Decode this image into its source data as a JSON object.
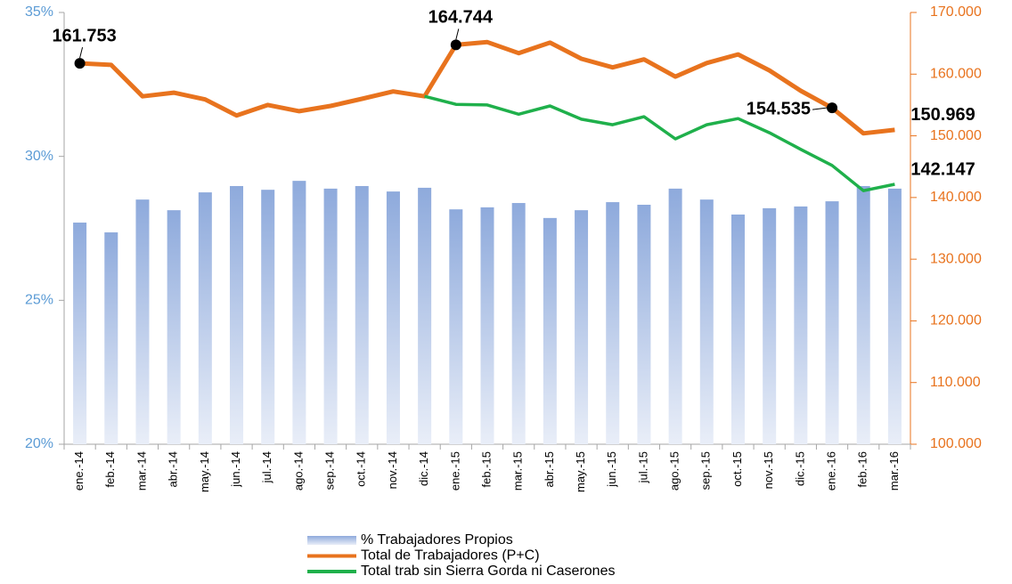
{
  "chart_data": {
    "type": "bar-line",
    "categories": [
      "ene.-14",
      "feb.-14",
      "mar.-14",
      "abr.-14",
      "may.-14",
      "jun.-14",
      "jul.-14",
      "ago.-14",
      "sep.-14",
      "oct.-14",
      "nov.-14",
      "dic.-14",
      "ene.-15",
      "feb.-15",
      "mar.-15",
      "abr.-15",
      "may.-15",
      "jun.-15",
      "jul.-15",
      "ago.-15",
      "sep.-15",
      "oct.-15",
      "nov.-15",
      "dic.-15",
      "ene.-16",
      "feb.-16",
      "mar.-16"
    ],
    "ylim": [
      20,
      35
    ],
    "yticks": [
      {
        "value": 20,
        "label": "20%"
      },
      {
        "value": 25,
        "label": "25%"
      },
      {
        "value": 30,
        "label": "30%"
      },
      {
        "value": 35,
        "label": "35%"
      }
    ],
    "y2lim": [
      100000,
      170000
    ],
    "y2ticks": [
      {
        "value": 100000,
        "label": "100.000"
      },
      {
        "value": 110000,
        "label": "110.000"
      },
      {
        "value": 120000,
        "label": "120.000"
      },
      {
        "value": 130000,
        "label": "130.000"
      },
      {
        "value": 140000,
        "label": "140.000"
      },
      {
        "value": 150000,
        "label": "150.000"
      },
      {
        "value": 160000,
        "label": "160.000"
      },
      {
        "value": 170000,
        "label": "170.000"
      }
    ],
    "series": [
      {
        "name": "% Trabajadores Propios",
        "type": "bar",
        "color": "#8eaadc",
        "values": [
          27.7,
          27.36,
          28.5,
          28.13,
          28.75,
          28.97,
          28.84,
          29.15,
          28.88,
          28.97,
          28.78,
          28.91,
          28.16,
          28.23,
          28.38,
          27.86,
          28.13,
          28.41,
          28.32,
          28.88,
          28.5,
          27.98,
          28.2,
          28.26,
          28.44,
          28.97,
          28.88
        ]
      },
      {
        "name": "Total de Trabajadores (P+C)",
        "type": "line",
        "axis": "y2",
        "color": "#e8731e",
        "values": [
          161753,
          161500,
          156400,
          157000,
          155900,
          153300,
          155000,
          154000,
          154850,
          156000,
          157200,
          156400,
          164744,
          165200,
          163400,
          165100,
          162500,
          161100,
          162400,
          159600,
          161800,
          163200,
          160600,
          157300,
          154535,
          150400,
          150969
        ],
        "value_labels": [
          "161.753",
          null,
          null,
          null,
          null,
          null,
          null,
          null,
          null,
          null,
          null,
          null,
          "164.744",
          null,
          null,
          null,
          null,
          null,
          null,
          null,
          null,
          null,
          null,
          null,
          "154.535",
          null,
          "150.969"
        ]
      },
      {
        "name": "Total trab sin Sierra Gorda ni Caserones",
        "type": "line",
        "axis": "y2",
        "color": "#1fb04b",
        "values": [
          null,
          null,
          null,
          null,
          null,
          null,
          null,
          null,
          null,
          null,
          null,
          156400,
          155100,
          155000,
          153500,
          154850,
          152700,
          151800,
          153100,
          149500,
          151800,
          152800,
          150500,
          147800,
          145200,
          141100,
          142147
        ],
        "value_labels": [
          null,
          null,
          null,
          null,
          null,
          null,
          null,
          null,
          null,
          null,
          null,
          null,
          null,
          null,
          null,
          null,
          null,
          null,
          null,
          null,
          null,
          null,
          null,
          null,
          null,
          null,
          "142.147"
        ]
      }
    ]
  }
}
